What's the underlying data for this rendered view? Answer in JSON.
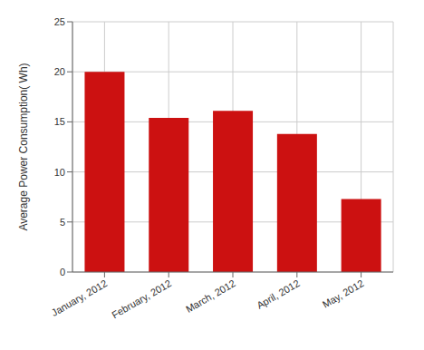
{
  "chart_data": {
    "type": "bar",
    "categories": [
      "January, 2012",
      "February, 2012",
      "March, 2012",
      "April, 2012",
      "May, 2012"
    ],
    "values": [
      20.0,
      15.4,
      16.1,
      13.8,
      7.3
    ],
    "ylabel": "Average Power Consumption(  Wh)",
    "color": "#cc1111",
    "ylim": [
      0,
      25
    ],
    "yticks": [
      0,
      5,
      10,
      15,
      20,
      25
    ],
    "grid": true
  }
}
